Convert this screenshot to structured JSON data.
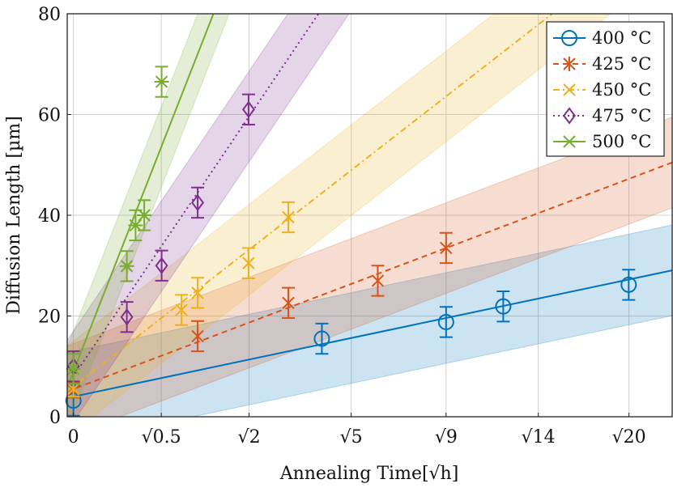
{
  "chart_data": {
    "type": "scatter",
    "title": "",
    "xlabel": "Annealing Time[√h]",
    "ylabel": "Diffusion Length [µm]",
    "x_scale": "sqrt",
    "xlim": [
      -0.05,
      4.82
    ],
    "ylim": [
      0,
      80
    ],
    "x_ticks": [
      {
        "value": 0,
        "label": "0"
      },
      {
        "value": 0.707,
        "label": "√0.5"
      },
      {
        "value": 1.414,
        "label": "√2"
      },
      {
        "value": 2.236,
        "label": "√5"
      },
      {
        "value": 3.0,
        "label": "√9"
      },
      {
        "value": 3.742,
        "label": "√14"
      },
      {
        "value": 4.472,
        "label": "√20"
      }
    ],
    "y_ticks": [
      0,
      20,
      40,
      60,
      80
    ],
    "grid": true,
    "legend_position": "top-right",
    "series": [
      {
        "name": "400 °C",
        "color": "#0072BD",
        "marker": "circle",
        "line_style": "solid",
        "points": [
          {
            "x": 0,
            "y": 3.2,
            "err": 3.0
          },
          {
            "x": 2.0,
            "y": 15.5,
            "err": 3.0
          },
          {
            "x": 3.0,
            "y": 18.8,
            "err": 3.0
          },
          {
            "x": 3.46,
            "y": 21.9,
            "err": 3.0
          },
          {
            "x": 4.47,
            "y": 26.2,
            "err": 3.0
          }
        ],
        "fit": {
          "intercept": 4.0,
          "slope": 5.2
        },
        "band": 9.0
      },
      {
        "name": "425 °C",
        "color": "#D95319",
        "marker": "asterisk",
        "line_style": "dashed",
        "points": [
          {
            "x": 0,
            "y": 5.3,
            "err": 1.5
          },
          {
            "x": 1.0,
            "y": 16.0,
            "err": 3.0
          },
          {
            "x": 1.73,
            "y": 22.6,
            "err": 3.0
          },
          {
            "x": 2.45,
            "y": 27.0,
            "err": 3.0
          },
          {
            "x": 3.0,
            "y": 33.5,
            "err": 3.0
          }
        ],
        "fit": {
          "intercept": 5.5,
          "slope": 9.33
        },
        "band": 9.0
      },
      {
        "name": "450 °C",
        "color": "#EDB120",
        "marker": "x",
        "line_style": "dashdot",
        "points": [
          {
            "x": 0,
            "y": 5.5,
            "err": 1.5
          },
          {
            "x": 0.87,
            "y": 21.2,
            "err": 3.0
          },
          {
            "x": 1.0,
            "y": 24.6,
            "err": 3.0
          },
          {
            "x": 1.41,
            "y": 30.5,
            "err": 3.0
          },
          {
            "x": 1.73,
            "y": 39.6,
            "err": 3.0
          }
        ],
        "fit": {
          "intercept": 6.0,
          "slope": 19.2
        },
        "band": 9.0
      },
      {
        "name": "475 °C",
        "color": "#7E2F8E",
        "marker": "diamond",
        "line_style": "dotted",
        "points": [
          {
            "x": 0,
            "y": 10.0,
            "err": 3.0
          },
          {
            "x": 0.43,
            "y": 19.8,
            "err": 3.0
          },
          {
            "x": 0.71,
            "y": 30.0,
            "err": 3.0
          },
          {
            "x": 1.0,
            "y": 42.5,
            "err": 3.0
          },
          {
            "x": 1.41,
            "y": 61.0,
            "err": 3.0
          }
        ],
        "fit": {
          "intercept": 8.0,
          "slope": 36.5
        },
        "band": 9.0
      },
      {
        "name": "500 °C",
        "color": "#77AC30",
        "marker": "star",
        "line_style": "solid",
        "points": [
          {
            "x": 0,
            "y": 9.5,
            "err": 3.0
          },
          {
            "x": 0.43,
            "y": 29.9,
            "err": 3.0
          },
          {
            "x": 0.5,
            "y": 38.0,
            "err": 3.0
          },
          {
            "x": 0.57,
            "y": 40.0,
            "err": 3.0
          },
          {
            "x": 0.71,
            "y": 66.5,
            "err": 3.0
          }
        ],
        "fit": {
          "intercept": 9.0,
          "slope": 63.0
        },
        "band": 8.0
      }
    ]
  }
}
